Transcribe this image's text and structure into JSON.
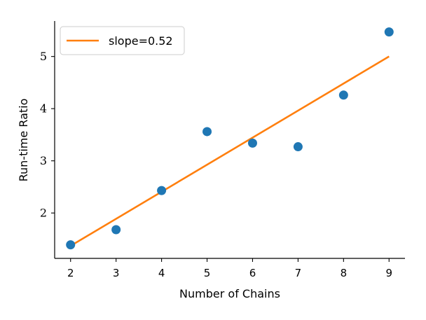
{
  "chart_data": {
    "type": "scatter",
    "xlabel": "Number of Chains",
    "ylabel": "Run-time Ratio",
    "xlim": [
      1.65,
      9.35
    ],
    "ylim": [
      1.13,
      5.68
    ],
    "xticks": [
      2,
      3,
      4,
      5,
      6,
      7,
      8,
      9
    ],
    "yticks": [
      2,
      3,
      4,
      5
    ],
    "grid": false,
    "legend_position": "top-left",
    "series": [
      {
        "kind": "scatter",
        "color": "#1f77b4",
        "x": [
          2,
          3,
          4,
          5,
          6,
          7,
          8,
          9
        ],
        "y": [
          1.39,
          1.68,
          2.43,
          3.56,
          3.34,
          3.27,
          4.26,
          5.47
        ]
      },
      {
        "name": "slope=0.52",
        "kind": "line",
        "color": "#ff7f0e",
        "x": [
          2,
          9
        ],
        "y": [
          1.37,
          5.0
        ]
      }
    ]
  }
}
